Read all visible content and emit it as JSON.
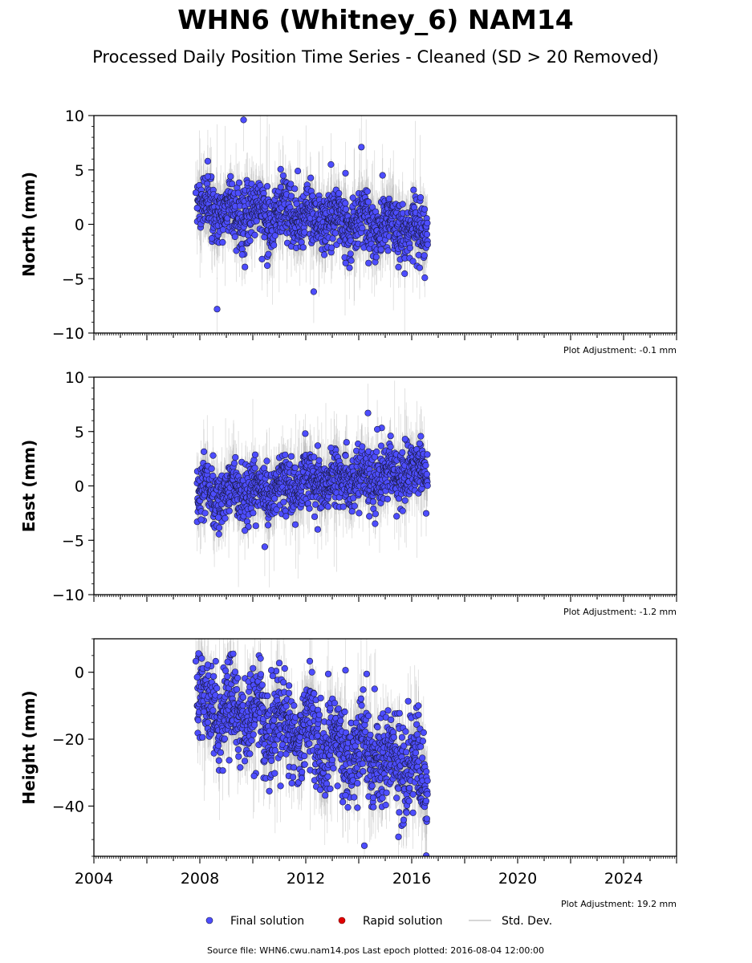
{
  "title": "WHN6 (Whitney_6) NAM14",
  "subtitle": "Processed Daily Position Time Series - Cleaned (SD > 20 Removed)",
  "colors": {
    "final": "#4d4dff",
    "rapid": "#e00000",
    "stddev": "#b0b0b0",
    "marker_edge": "#1a1a40"
  },
  "x_tick_labels": [
    "2004",
    "2008",
    "2012",
    "2016",
    "2020",
    "2024"
  ],
  "legend": {
    "final": "Final solution",
    "rapid": "Rapid solution",
    "stddev": "Std. Dev."
  },
  "footer": "Source file: WHN6.cwu.nam14.pos  Last epoch plotted: 2016-08-04 12:00:00",
  "chart_data": [
    {
      "type": "scatter",
      "name": "North",
      "ylabel": "North (mm)",
      "xlim": [
        2004,
        2026
      ],
      "ylim": [
        -10,
        10
      ],
      "yticks": [
        -10,
        -5,
        0,
        5,
        10
      ],
      "ytick_labels": [
        "−10",
        "−5",
        "0",
        "5",
        "10"
      ],
      "adjustment": "Plot Adjustment: -0.1 mm",
      "trend": {
        "start": 2007.9,
        "end": 2016.6,
        "y_start": 1.6,
        "y_end": -0.6,
        "spread": 1.3,
        "err": 1.6
      },
      "outliers": [
        [
          2007.85,
          2.9
        ],
        [
          2007.9,
          1.5
        ],
        [
          2008.3,
          5.8
        ],
        [
          2008.3,
          4.4
        ],
        [
          2008.45,
          -1.3
        ],
        [
          2008.65,
          -7.8
        ],
        [
          2009.65,
          9.6
        ],
        [
          2009.6,
          -2.8
        ],
        [
          2010.35,
          -3.2
        ],
        [
          2010.55,
          -3.8
        ],
        [
          2011.7,
          4.9
        ],
        [
          2012.3,
          -6.2
        ],
        [
          2012.95,
          5.5
        ],
        [
          2013.5,
          4.7
        ],
        [
          2013.65,
          -4.0
        ],
        [
          2014.1,
          7.1
        ],
        [
          2014.9,
          4.5
        ],
        [
          2016.3,
          -4.0
        ],
        [
          2016.05,
          -3.4
        ]
      ]
    },
    {
      "type": "scatter",
      "name": "East",
      "ylabel": "East (mm)",
      "xlim": [
        2004,
        2026
      ],
      "ylim": [
        -10,
        10
      ],
      "yticks": [
        -10,
        -5,
        0,
        5,
        10
      ],
      "ytick_labels": [
        "−10",
        "−5",
        "0",
        "5",
        "10"
      ],
      "adjustment": "Plot Adjustment: -1.2 mm",
      "trend": {
        "start": 2007.9,
        "end": 2016.6,
        "y_start": -0.9,
        "y_end": 1.4,
        "spread": 1.2,
        "err": 1.5
      },
      "outliers": [
        [
          2007.9,
          -3.3
        ],
        [
          2008.05,
          -3.1
        ],
        [
          2008.2,
          -2.5
        ],
        [
          2008.5,
          2.8
        ],
        [
          2008.7,
          -2.9
        ],
        [
          2009.7,
          -4.1
        ],
        [
          2010.45,
          -5.6
        ],
        [
          2011.25,
          -2.8
        ],
        [
          2012.45,
          3.7
        ],
        [
          2012.45,
          -4.0
        ],
        [
          2012.95,
          3.5
        ],
        [
          2014.35,
          6.7
        ],
        [
          2014.4,
          -2.8
        ],
        [
          2014.7,
          5.2
        ],
        [
          2015.2,
          3.6
        ],
        [
          2015.75,
          4.3
        ],
        [
          2016.3,
          3.9
        ]
      ]
    },
    {
      "type": "scatter",
      "name": "Height",
      "ylabel": "Height (mm)",
      "xlim": [
        2004,
        2026
      ],
      "ylim": [
        -55,
        10
      ],
      "yticks": [
        0,
        -20,
        -40
      ],
      "ytick_labels": [
        "0",
        "−20",
        "−40"
      ],
      "adjustment": "Plot Adjustment: 19.2 mm",
      "trend": {
        "start": 2007.9,
        "end": 2016.6,
        "y_start": -9,
        "y_end": -30,
        "spread": 6.5,
        "err": 6.0
      },
      "outliers": [
        [
          2007.95,
          5.6
        ],
        [
          2007.85,
          3.3
        ],
        [
          2007.9,
          -1.5
        ],
        [
          2008.3,
          2.2
        ],
        [
          2008.15,
          -11.8
        ],
        [
          2008.3,
          -15.0
        ],
        [
          2009.05,
          3.1
        ],
        [
          2010.7,
          0.6
        ],
        [
          2012.15,
          3.3
        ],
        [
          2012.85,
          -0.5
        ],
        [
          2013.5,
          0.6
        ],
        [
          2014.3,
          -0.5
        ],
        [
          2014.6,
          -5.0
        ],
        [
          2013.2,
          -34.0
        ],
        [
          2013.5,
          -36.8
        ],
        [
          2013.95,
          -40.5
        ],
        [
          2014.55,
          -37.5
        ],
        [
          2015.05,
          -36.0
        ],
        [
          2015.9,
          -38.5
        ],
        [
          2016.05,
          -42.0
        ],
        [
          2016.55,
          -54.8
        ],
        [
          2016.25,
          -10.0
        ],
        [
          2010.05,
          -31.0
        ],
        [
          2011.05,
          -34.0
        ]
      ]
    }
  ]
}
